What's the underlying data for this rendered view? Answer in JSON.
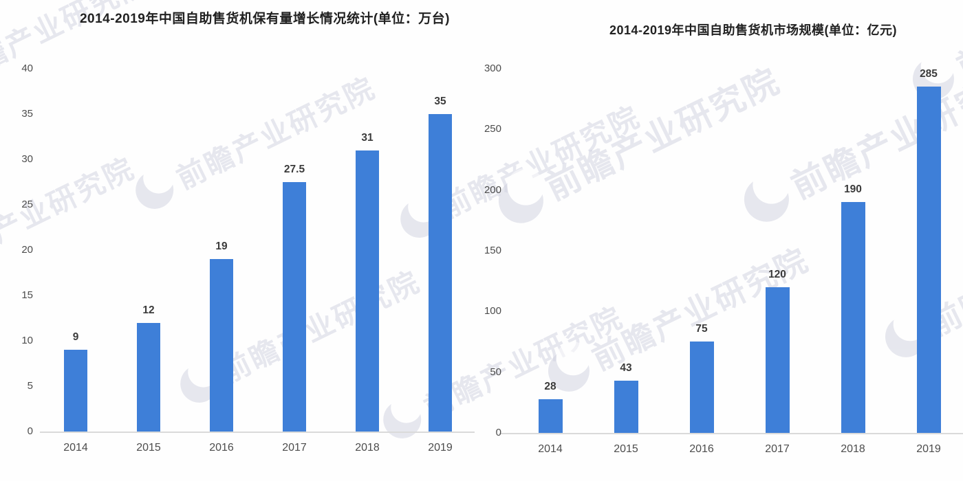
{
  "watermark": {
    "text": "前瞻产业研究院"
  },
  "chart_data": [
    {
      "type": "bar",
      "title": "2014-2019年中国自助售货机保有量增长情况统计(单位：万台)",
      "unit": "万台",
      "categories": [
        "2014",
        "2015",
        "2016",
        "2017",
        "2018",
        "2019"
      ],
      "values": [
        9,
        12,
        19,
        27.5,
        31,
        35
      ],
      "value_labels": [
        "9",
        "12",
        "19",
        "27.5",
        "31",
        "35"
      ],
      "ylim": [
        0,
        40
      ],
      "yticks": [
        0,
        5,
        10,
        15,
        20,
        25,
        30,
        35,
        40
      ],
      "xlabel": "",
      "ylabel": "",
      "grid": false,
      "legend_position": "none",
      "bar_color": "#3E7FD8"
    },
    {
      "type": "bar",
      "title": "2014-2019年中国自助售货机市场规模(单位：亿元)",
      "unit": "亿元",
      "categories": [
        "2014",
        "2015",
        "2016",
        "2017",
        "2018",
        "2019"
      ],
      "values": [
        28,
        43,
        75,
        120,
        190,
        285
      ],
      "value_labels": [
        "28",
        "43",
        "75",
        "120",
        "190",
        "285"
      ],
      "ylim": [
        0,
        300
      ],
      "yticks": [
        0,
        50,
        100,
        150,
        200,
        250,
        300
      ],
      "xlabel": "",
      "ylabel": "",
      "grid": false,
      "legend_position": "none",
      "bar_color": "#3E7FD8"
    }
  ]
}
